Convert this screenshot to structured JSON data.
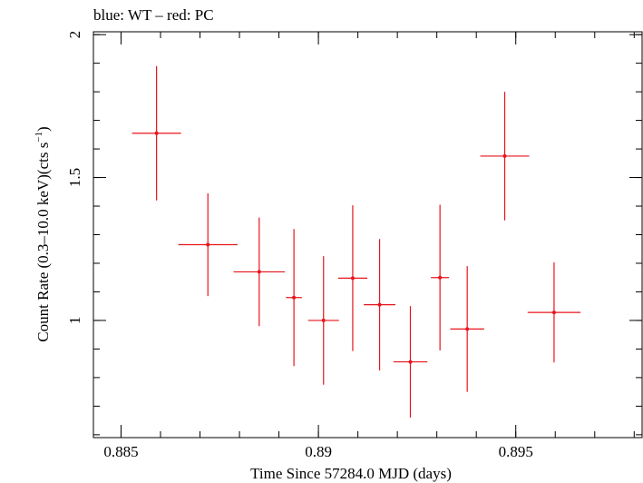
{
  "chart_data": {
    "type": "scatter",
    "title": "blue: WT – red: PC",
    "xlabel": "Time Since 57284.0 MJD (days)",
    "ylabel": "Count Rate (0.3–10.0 keV)(cts s",
    "ylabel_sup": "−1",
    "ylabel_end": ")",
    "xlim": [
      0.8843,
      0.8982
    ],
    "ylim": [
      0.59,
      2.01
    ],
    "x_ticks": [
      0.885,
      0.89,
      0.895
    ],
    "x_tick_labels": [
      "0.885",
      "0.89",
      "0.895"
    ],
    "x_minor_step": 0.001,
    "y_ticks": [
      1,
      1.5,
      2
    ],
    "y_tick_labels": [
      "1",
      "1.5",
      "2"
    ],
    "y_minor_step": 0.1,
    "grid": false,
    "series": [
      {
        "color": "#e8141c",
        "points": [
          {
            "x": 0.8859,
            "xerr": 0.00062,
            "y": 1.655,
            "yerr": 0.235
          },
          {
            "x": 0.8872,
            "xerr": 0.00075,
            "y": 1.265,
            "yerr": 0.18
          },
          {
            "x": 0.8885,
            "xerr": 0.00065,
            "y": 1.17,
            "yerr": 0.19
          },
          {
            "x": 0.88938,
            "xerr": 0.0002,
            "y": 1.08,
            "yerr": 0.24
          },
          {
            "x": 0.89013,
            "xerr": 0.00039,
            "y": 1.0,
            "yerr": 0.225
          },
          {
            "x": 0.89087,
            "xerr": 0.00037,
            "y": 1.148,
            "yerr": 0.255
          },
          {
            "x": 0.89155,
            "xerr": 0.0004,
            "y": 1.055,
            "yerr": 0.23
          },
          {
            "x": 0.89233,
            "xerr": 0.00043,
            "y": 0.855,
            "yerr": 0.195
          },
          {
            "x": 0.89308,
            "xerr": 0.00023,
            "y": 1.15,
            "yerr": 0.255
          },
          {
            "x": 0.89377,
            "xerr": 0.00043,
            "y": 0.97,
            "yerr": 0.22
          },
          {
            "x": 0.89472,
            "xerr": 0.00062,
            "y": 1.575,
            "yerr": 0.225
          },
          {
            "x": 0.89597,
            "xerr": 0.00067,
            "y": 1.028,
            "yerr": 0.175
          }
        ]
      }
    ]
  }
}
